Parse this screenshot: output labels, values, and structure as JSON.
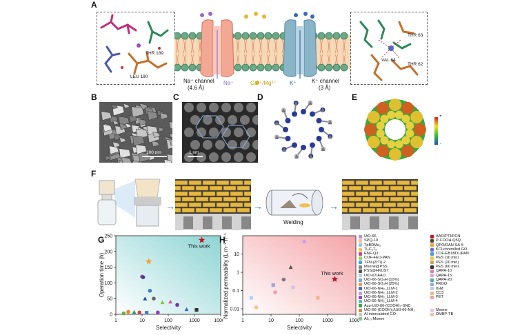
{
  "panel_labels": {
    "A": "A",
    "B": "B",
    "C": "C",
    "D": "D",
    "E": "E",
    "F": "F",
    "G": "G",
    "H": "H"
  },
  "panelA": {
    "na_channel": "Na⁺ channel",
    "na_size": "(4.6 Å)",
    "na_ion": "Na⁺",
    "ca_mg": "Ca²⁺/Mg²⁺",
    "k_ion": "K⁺",
    "k_channel": "K⁺ channel",
    "k_size": "(3 Å)",
    "left_thr": "THR 189",
    "left_leu": "LEU 190",
    "right_thr1": "THR 63",
    "right_val": "VAL 64",
    "right_thr2": "THR 62"
  },
  "panelB": {
    "scale": "100 nm"
  },
  "panelC": {
    "scale": "1 nm"
  },
  "panelE": {
    "plus": "+",
    "minus": "-"
  },
  "panelF": {
    "welding": "Welding"
  },
  "chartG": {
    "type": "scatter",
    "xlabel": "Selectivity",
    "ylabel": "Operation time (h)",
    "xscale": "log",
    "xlim": [
      1,
      10000
    ],
    "ylim": [
      0,
      250
    ],
    "xticks": [
      "1",
      "10",
      "100",
      "1000",
      "10000"
    ],
    "yticks": [
      "0",
      "50",
      "100",
      "150",
      "200",
      "250"
    ],
    "annotation": "This work",
    "points": [
      {
        "x": 1900,
        "y": 236,
        "color": "#c0151e",
        "shape": "star"
      },
      {
        "x": 18,
        "y": 168,
        "color": "#f2a23a",
        "shape": "star"
      },
      {
        "x": 10,
        "y": 120,
        "color": "#b04a9a",
        "shape": "circle"
      },
      {
        "x": 11,
        "y": 118,
        "color": "#4b3a8f",
        "shape": "circle"
      },
      {
        "x": 20,
        "y": 75,
        "color": "#3a7fc4",
        "shape": "circle"
      },
      {
        "x": 13,
        "y": 50,
        "color": "#2a4d9a",
        "shape": "triangle"
      },
      {
        "x": 28,
        "y": 50,
        "color": "#666666",
        "shape": "circle"
      },
      {
        "x": 60,
        "y": 38,
        "color": "#8bc34a",
        "shape": "triangle"
      },
      {
        "x": 120,
        "y": 40,
        "color": "#d05a8a",
        "shape": "triangle"
      },
      {
        "x": 220,
        "y": 30,
        "color": "#6a3aa0",
        "shape": "circle"
      },
      {
        "x": 500,
        "y": 16,
        "color": "#3a6ab0",
        "shape": "triangle"
      },
      {
        "x": 1200,
        "y": 14,
        "color": "#333333",
        "shape": "square"
      },
      {
        "x": 3,
        "y": 8,
        "color": "#e38a2a",
        "shape": "circle"
      },
      {
        "x": 5,
        "y": 7,
        "color": "#2a9a6a",
        "shape": "triangle"
      },
      {
        "x": 8,
        "y": 6,
        "color": "#c44a4a",
        "shape": "circle"
      },
      {
        "x": 15,
        "y": 5,
        "color": "#4a7ad0",
        "shape": "square"
      },
      {
        "x": 40,
        "y": 6,
        "color": "#9a3ac4",
        "shape": "circle"
      },
      {
        "x": 2,
        "y": 3,
        "color": "#6ab04a",
        "shape": "circle"
      }
    ]
  },
  "chartH": {
    "type": "scatter",
    "xlabel": "Selectivity",
    "ylabel": "Normalized permeability (L m⁻² h⁻¹)",
    "xscale": "log",
    "yscale": "log",
    "xlim": [
      1,
      10000
    ],
    "ylim": [
      0.005,
      100
    ],
    "xticks": [
      "1",
      "10",
      "100",
      "1000",
      "10000"
    ],
    "yticks": [
      "0.01",
      "0.1",
      "1",
      "10"
    ],
    "annotation": "This work",
    "points": [
      {
        "x": 1800,
        "y": 0.42,
        "color": "#c0151e",
        "shape": "star"
      },
      {
        "x": 150,
        "y": 48,
        "color": "#c9a3e6",
        "shape": "circle"
      },
      {
        "x": 50,
        "y": 1.9,
        "color": "#555555",
        "shape": "triangle"
      },
      {
        "x": 28,
        "y": 0.4,
        "color": "#777777",
        "shape": "circle"
      },
      {
        "x": 12,
        "y": 0.2,
        "color": "#9aa6dd",
        "shape": "square"
      },
      {
        "x": 14,
        "y": 0.08,
        "color": "#f0a0a0",
        "shape": "circle"
      },
      {
        "x": 2,
        "y": 0.04,
        "color": "#b0d0f0",
        "shape": "square"
      },
      {
        "x": 3,
        "y": 0.012,
        "color": "#f2c28a",
        "shape": "circle"
      },
      {
        "x": 450,
        "y": 0.04,
        "color": "#f2b48a",
        "shape": "square"
      },
      {
        "x": 60,
        "y": 0.15,
        "color": "#d0c0f0",
        "shape": "circle"
      }
    ]
  },
  "legend": {
    "col1": [
      {
        "label": "UiO-66",
        "color": "#b78fd6"
      },
      {
        "label": "SPQ-10",
        "color": "#f2c28a"
      },
      {
        "label": "TpBDMe₂",
        "color": "#8ec6e6"
      },
      {
        "label": "Ti₃C₂Tₓ",
        "color": "#f0c64a"
      },
      {
        "label": "ENF-Q3",
        "color": "#c44a8a"
      },
      {
        "label": "COF-4EO-PAN",
        "color": "#a0d46a"
      },
      {
        "label": "TFN-(ZrTi)-2",
        "color": "#4aa0d0"
      },
      {
        "label": "Mxene@PSS",
        "color": "#888888"
      },
      {
        "label": "PSS@HKUST",
        "color": "#555555"
      },
      {
        "label": "UiO-67/AAO",
        "color": "#b0d0f0"
      },
      {
        "label": "UiO-66-SO₃H (10%)",
        "color": "#6ab0e6"
      },
      {
        "label": "UiO-66-SO₃H (25%)",
        "color": "#f0a04a"
      },
      {
        "label": "UiO-66-NH₂_LLM-1",
        "color": "#4a6ac4"
      },
      {
        "label": "UiO-66-NH₂_LLM-2",
        "color": "#c4a0d0"
      },
      {
        "label": "UiO-66-NH₂_LLM-3",
        "color": "#9a4ac4"
      },
      {
        "label": "UiO-66-NH₂_LLM-4",
        "color": "#4ac4b0"
      },
      {
        "label": "Azp-UiO-66-(COOH)₂-SNC",
        "color": "#4aa04a"
      },
      {
        "label": "UiO-66-(COOH)₂/UiO-66-NH₂",
        "color": "#d08a4a"
      },
      {
        "label": "Al-intercalated GO",
        "color": "#c4c4c4"
      },
      {
        "label": "Al₀.₃ Mxene",
        "color": "#8ac48a"
      }
    ],
    "col2": [
      {
        "label": "AAO/PTI/PCN",
        "color": "#c0151e"
      },
      {
        "label": "P-COOH-Q5Q",
        "color": "#444444"
      },
      {
        "label": "QPO/DAN-SA-5",
        "color": "#f2a23a"
      },
      {
        "label": "KCl-controlled GO",
        "color": "#6a6ad0"
      },
      {
        "label": "COF-EB1BD1/PAN",
        "color": "#4a9ad0"
      },
      {
        "label": "PES (10 min)",
        "color": "#f0c64a"
      },
      {
        "label": "PES (20 min)",
        "color": "#d0a04a"
      },
      {
        "label": "PES (60 min)",
        "color": "#333333"
      },
      {
        "label": "QAPA-10",
        "color": "#e07ab0"
      },
      {
        "label": "QAPA-15",
        "color": "#f0a0c0"
      },
      {
        "label": "QAPA-20",
        "color": "#4ab0a0"
      },
      {
        "label": "FRGO",
        "color": "#9aa6dd"
      },
      {
        "label": "IGM",
        "color": "#b0d0f0"
      },
      {
        "label": "CC3",
        "color": "#f2b48a"
      },
      {
        "label": "PET",
        "color": "#f0a0a0"
      },
      {
        "label": "",
        "color": ""
      },
      {
        "label": "",
        "color": ""
      },
      {
        "label": "Mxene",
        "color": "#e6c6e6"
      },
      {
        "label": "DMBP-TB",
        "color": "#f0c0a0"
      }
    ]
  }
}
